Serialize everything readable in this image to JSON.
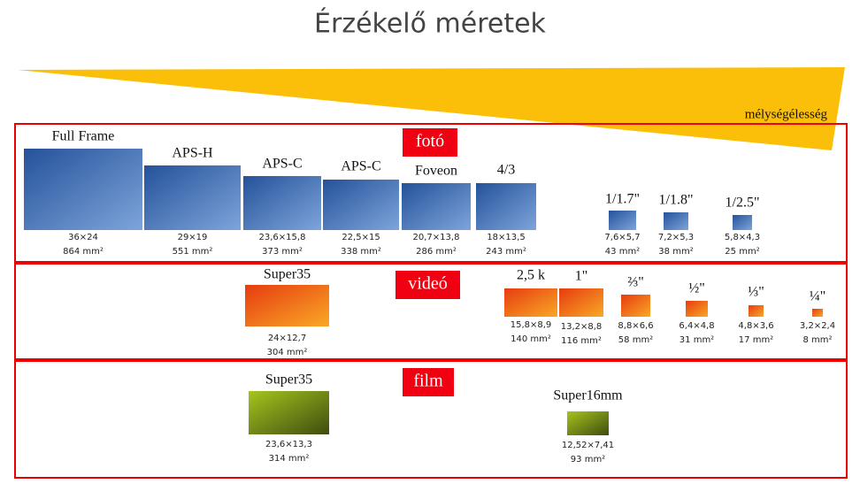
{
  "title": "Érzékelő méretek",
  "depth_label": "mélységélesség",
  "sections": [
    {
      "label": "fotó",
      "sensors": [
        {
          "name": "Full Frame",
          "size": "36×24",
          "area": "864 mm²"
        },
        {
          "name": "APS-H",
          "size": "29×19",
          "area": "551 mm²"
        },
        {
          "name": "APS-C",
          "size": "23,6×15,8",
          "area": "373 mm²"
        },
        {
          "name": "APS-C",
          "size": "22,5×15",
          "area": "338 mm²"
        },
        {
          "name": "Foveon",
          "size": "20,7×13,8",
          "area": "286 mm²"
        },
        {
          "name": "4/3",
          "size": "18×13,5",
          "area": "243 mm²"
        },
        {
          "name": "1/1.7\"",
          "size": "7,6×5,7",
          "area": "43 mm²"
        },
        {
          "name": "1/1.8\"",
          "size": "7,2×5,3",
          "area": "38 mm²"
        },
        {
          "name": "1/2.5\"",
          "size": "5,8×4,3",
          "area": "25 mm²"
        }
      ]
    },
    {
      "label": "videó",
      "sensors": [
        {
          "name": "Super35",
          "size": "24×12,7",
          "area": "304 mm²"
        },
        {
          "name": "2,5 k",
          "size": "15,8×8,9",
          "area": "140 mm²"
        },
        {
          "name": "1\"",
          "size": "13,2×8,8",
          "area": "116 mm²"
        },
        {
          "name": "⅔\"",
          "size": "8,8×6,6",
          "area": "58 mm²"
        },
        {
          "name": "½\"",
          "size": "6,4×4,8",
          "area": "31 mm²"
        },
        {
          "name": "⅓\"",
          "size": "4,8×3,6",
          "area": "17 mm²"
        },
        {
          "name": "¼\"",
          "size": "3,2×2,4",
          "area": "8 mm²"
        }
      ]
    },
    {
      "label": "film",
      "sensors": [
        {
          "name": "Super35",
          "size": "23,6×13,3",
          "area": "314 mm²"
        },
        {
          "name": "Super16mm",
          "size": "12,52×7,41",
          "area": "93 mm²"
        }
      ]
    }
  ]
}
